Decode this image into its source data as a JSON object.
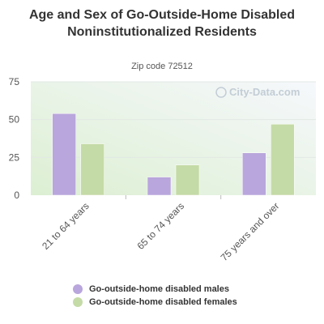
{
  "chart_data": {
    "type": "bar",
    "title": "Age and Sex of Go-Outside-Home Disabled Noninstitutionalized Residents",
    "subtitle": "Zip code 72512",
    "categories": [
      "21 to 64 years",
      "65 to 74 years",
      "75 years and over"
    ],
    "series": [
      {
        "name": "Go-outside-home disabled males",
        "values": [
          54,
          12,
          28
        ],
        "color": "#b9a6dc"
      },
      {
        "name": "Go-outside-home disabled females",
        "values": [
          34,
          20,
          47
        ],
        "color": "#c5dba7"
      }
    ],
    "ylim": [
      0,
      75
    ],
    "yticks": [
      "0",
      "25",
      "50",
      "75"
    ],
    "grid": true,
    "legend": "bottom"
  },
  "watermark": "City-Data.com"
}
